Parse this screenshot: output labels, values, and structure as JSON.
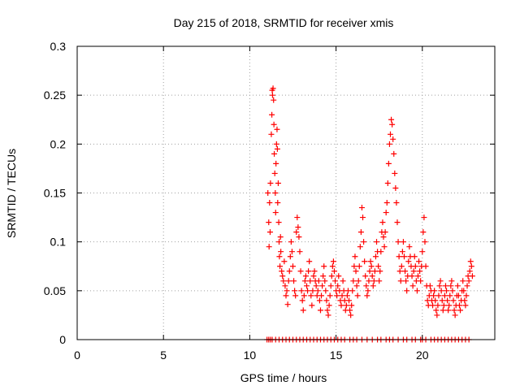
{
  "chart_data": {
    "type": "scatter",
    "title": "Day 215 of 2018, SRMTID for receiver xmis",
    "xlabel": "GPS time / hours",
    "ylabel": "SRMTID / TECUs",
    "xlim": [
      0,
      24.2
    ],
    "ylim": [
      0,
      0.3
    ],
    "xticks": [
      0,
      5,
      10,
      15,
      20
    ],
    "xtick_labels": [
      "0",
      "5",
      "10",
      "15",
      "20"
    ],
    "yticks": [
      0,
      0.05,
      0.1,
      0.15,
      0.2,
      0.25,
      0.3
    ],
    "ytick_labels": [
      "0",
      "0.05",
      "0.1",
      "0.15",
      "0.2",
      "0.25",
      "0.3"
    ],
    "grid": true,
    "legend": "none",
    "marker": "+",
    "series": [
      {
        "name": "SRMTID",
        "color": "#ff0000",
        "points": [
          [
            11.0,
            0.0
          ],
          [
            11.1,
            0.0
          ],
          [
            11.2,
            0.0
          ],
          [
            11.3,
            0.0
          ],
          [
            11.5,
            0.0
          ],
          [
            11.7,
            0.0
          ],
          [
            11.9,
            0.0
          ],
          [
            12.1,
            0.0
          ],
          [
            12.3,
            0.0
          ],
          [
            12.5,
            0.0
          ],
          [
            12.7,
            0.0
          ],
          [
            12.9,
            0.0
          ],
          [
            13.1,
            0.0
          ],
          [
            13.3,
            0.0
          ],
          [
            13.5,
            0.0
          ],
          [
            13.7,
            0.0
          ],
          [
            13.9,
            0.0
          ],
          [
            14.1,
            0.0
          ],
          [
            14.3,
            0.0
          ],
          [
            14.5,
            0.0
          ],
          [
            14.7,
            0.0
          ],
          [
            14.9,
            0.0
          ],
          [
            15.1,
            0.0
          ],
          [
            15.3,
            0.0
          ],
          [
            15.5,
            0.0
          ],
          [
            15.8,
            0.0
          ],
          [
            16.0,
            0.0
          ],
          [
            16.2,
            0.0
          ],
          [
            16.5,
            0.0
          ],
          [
            16.8,
            0.0
          ],
          [
            17.1,
            0.0
          ],
          [
            17.4,
            0.0
          ],
          [
            17.6,
            0.0
          ],
          [
            17.9,
            0.0
          ],
          [
            18.1,
            0.0
          ],
          [
            18.3,
            0.0
          ],
          [
            18.6,
            0.0
          ],
          [
            18.9,
            0.0
          ],
          [
            19.1,
            0.0
          ],
          [
            19.4,
            0.0
          ],
          [
            19.6,
            0.0
          ],
          [
            19.9,
            0.0
          ],
          [
            20.0,
            0.0
          ],
          [
            20.2,
            0.0
          ],
          [
            20.5,
            0.0
          ],
          [
            20.7,
            0.0
          ],
          [
            20.9,
            0.0
          ],
          [
            21.1,
            0.0
          ],
          [
            21.3,
            0.0
          ],
          [
            21.5,
            0.0
          ],
          [
            21.7,
            0.0
          ],
          [
            21.9,
            0.0
          ],
          [
            22.1,
            0.0
          ],
          [
            22.3,
            0.0
          ],
          [
            22.5,
            0.0
          ],
          [
            22.7,
            0.0
          ],
          [
            11.05,
            0.15
          ],
          [
            11.1,
            0.12
          ],
          [
            11.12,
            0.095
          ],
          [
            11.15,
            0.14
          ],
          [
            11.18,
            0.11
          ],
          [
            11.2,
            0.16
          ],
          [
            11.25,
            0.21
          ],
          [
            11.28,
            0.23
          ],
          [
            11.3,
            0.255
          ],
          [
            11.32,
            0.25
          ],
          [
            11.35,
            0.257
          ],
          [
            11.38,
            0.245
          ],
          [
            11.4,
            0.22
          ],
          [
            11.42,
            0.19
          ],
          [
            11.45,
            0.17
          ],
          [
            11.48,
            0.15
          ],
          [
            11.5,
            0.13
          ],
          [
            11.52,
            0.18
          ],
          [
            11.55,
            0.2
          ],
          [
            11.58,
            0.215
          ],
          [
            11.6,
            0.195
          ],
          [
            11.62,
            0.14
          ],
          [
            11.65,
            0.16
          ],
          [
            11.68,
            0.12
          ],
          [
            11.7,
            0.1
          ],
          [
            11.72,
            0.085
          ],
          [
            11.75,
            0.075
          ],
          [
            11.78,
            0.105
          ],
          [
            11.8,
            0.09
          ],
          [
            11.85,
            0.07
          ],
          [
            11.9,
            0.065
          ],
          [
            11.95,
            0.06
          ],
          [
            12.0,
            0.08
          ],
          [
            12.05,
            0.055
          ],
          [
            12.1,
            0.045
          ],
          [
            12.15,
            0.05
          ],
          [
            12.2,
            0.036
          ],
          [
            12.25,
            0.06
          ],
          [
            12.3,
            0.07
          ],
          [
            12.35,
            0.085
          ],
          [
            12.4,
            0.1
          ],
          [
            12.45,
            0.09
          ],
          [
            12.5,
            0.075
          ],
          [
            12.55,
            0.06
          ],
          [
            12.6,
            0.05
          ],
          [
            12.65,
            0.045
          ],
          [
            12.7,
            0.11
          ],
          [
            12.75,
            0.125
          ],
          [
            12.8,
            0.115
          ],
          [
            12.85,
            0.105
          ],
          [
            12.9,
            0.09
          ],
          [
            12.95,
            0.07
          ],
          [
            13.0,
            0.05
          ],
          [
            13.05,
            0.04
          ],
          [
            13.1,
            0.03
          ],
          [
            13.15,
            0.045
          ],
          [
            13.2,
            0.06
          ],
          [
            13.25,
            0.065
          ],
          [
            13.3,
            0.055
          ],
          [
            13.35,
            0.05
          ],
          [
            13.4,
            0.07
          ],
          [
            13.45,
            0.08
          ],
          [
            13.5,
            0.06
          ],
          [
            13.55,
            0.045
          ],
          [
            13.6,
            0.035
          ],
          [
            13.65,
            0.05
          ],
          [
            13.7,
            0.065
          ],
          [
            13.75,
            0.07
          ],
          [
            13.8,
            0.06
          ],
          [
            13.85,
            0.055
          ],
          [
            13.9,
            0.045
          ],
          [
            13.95,
            0.05
          ],
          [
            14.0,
            0.06
          ],
          [
            14.05,
            0.04
          ],
          [
            14.1,
            0.03
          ],
          [
            14.15,
            0.045
          ],
          [
            14.2,
            0.055
          ],
          [
            14.25,
            0.065
          ],
          [
            14.3,
            0.075
          ],
          [
            14.35,
            0.06
          ],
          [
            14.4,
            0.05
          ],
          [
            14.45,
            0.04
          ],
          [
            14.5,
            0.03
          ],
          [
            14.55,
            0.025
          ],
          [
            14.6,
            0.035
          ],
          [
            14.65,
            0.045
          ],
          [
            14.7,
            0.055
          ],
          [
            14.75,
            0.065
          ],
          [
            14.8,
            0.075
          ],
          [
            14.85,
            0.08
          ],
          [
            14.9,
            0.07
          ],
          [
            14.95,
            0.06
          ],
          [
            15.0,
            0.05
          ],
          [
            15.05,
            0.045
          ],
          [
            15.1,
            0.055
          ],
          [
            15.15,
            0.065
          ],
          [
            15.2,
            0.05
          ],
          [
            15.25,
            0.04
          ],
          [
            15.3,
            0.035
          ],
          [
            15.35,
            0.045
          ],
          [
            15.4,
            0.06
          ],
          [
            15.45,
            0.05
          ],
          [
            15.5,
            0.04
          ],
          [
            15.55,
            0.03
          ],
          [
            15.6,
            0.035
          ],
          [
            15.65,
            0.045
          ],
          [
            15.7,
            0.05
          ],
          [
            15.75,
            0.04
          ],
          [
            15.8,
            0.03
          ],
          [
            15.85,
            0.025
          ],
          [
            15.9,
            0.035
          ],
          [
            15.95,
            0.05
          ],
          [
            16.0,
            0.06
          ],
          [
            16.05,
            0.075
          ],
          [
            16.1,
            0.085
          ],
          [
            16.15,
            0.07
          ],
          [
            16.2,
            0.055
          ],
          [
            16.25,
            0.045
          ],
          [
            16.3,
            0.06
          ],
          [
            16.35,
            0.075
          ],
          [
            16.4,
            0.095
          ],
          [
            16.45,
            0.11
          ],
          [
            16.5,
            0.135
          ],
          [
            16.55,
            0.125
          ],
          [
            16.6,
            0.1
          ],
          [
            16.65,
            0.08
          ],
          [
            16.7,
            0.065
          ],
          [
            16.75,
            0.055
          ],
          [
            16.8,
            0.045
          ],
          [
            16.85,
            0.05
          ],
          [
            16.9,
            0.06
          ],
          [
            16.95,
            0.07
          ],
          [
            17.0,
            0.08
          ],
          [
            17.05,
            0.075
          ],
          [
            17.1,
            0.065
          ],
          [
            17.15,
            0.055
          ],
          [
            17.2,
            0.06
          ],
          [
            17.25,
            0.07
          ],
          [
            17.3,
            0.085
          ],
          [
            17.35,
            0.1
          ],
          [
            17.4,
            0.09
          ],
          [
            17.45,
            0.075
          ],
          [
            17.5,
            0.06
          ],
          [
            17.55,
            0.07
          ],
          [
            17.6,
            0.09
          ],
          [
            17.65,
            0.11
          ],
          [
            17.7,
            0.12
          ],
          [
            17.75,
            0.105
          ],
          [
            17.8,
            0.095
          ],
          [
            17.85,
            0.11
          ],
          [
            17.9,
            0.13
          ],
          [
            17.95,
            0.14
          ],
          [
            18.0,
            0.16
          ],
          [
            18.05,
            0.18
          ],
          [
            18.1,
            0.2
          ],
          [
            18.15,
            0.21
          ],
          [
            18.2,
            0.225
          ],
          [
            18.25,
            0.22
          ],
          [
            18.3,
            0.205
          ],
          [
            18.35,
            0.19
          ],
          [
            18.4,
            0.17
          ],
          [
            18.45,
            0.155
          ],
          [
            18.5,
            0.14
          ],
          [
            18.55,
            0.12
          ],
          [
            18.6,
            0.1
          ],
          [
            18.65,
            0.085
          ],
          [
            18.7,
            0.07
          ],
          [
            18.75,
            0.06
          ],
          [
            18.8,
            0.075
          ],
          [
            18.85,
            0.09
          ],
          [
            18.9,
            0.1
          ],
          [
            18.95,
            0.085
          ],
          [
            19.0,
            0.07
          ],
          [
            19.05,
            0.06
          ],
          [
            19.1,
            0.05
          ],
          [
            19.15,
            0.065
          ],
          [
            19.2,
            0.08
          ],
          [
            19.25,
            0.095
          ],
          [
            19.3,
            0.085
          ],
          [
            19.35,
            0.075
          ],
          [
            19.4,
            0.065
          ],
          [
            19.45,
            0.055
          ],
          [
            19.5,
            0.07
          ],
          [
            19.55,
            0.085
          ],
          [
            19.6,
            0.075
          ],
          [
            19.65,
            0.06
          ],
          [
            19.7,
            0.05
          ],
          [
            19.75,
            0.065
          ],
          [
            19.8,
            0.08
          ],
          [
            19.85,
            0.07
          ],
          [
            19.9,
            0.06
          ],
          [
            19.95,
            0.075
          ],
          [
            20.0,
            0.09
          ],
          [
            20.05,
            0.11
          ],
          [
            20.1,
            0.125
          ],
          [
            20.15,
            0.1
          ],
          [
            20.2,
            0.075
          ],
          [
            20.25,
            0.055
          ],
          [
            20.3,
            0.04
          ],
          [
            20.35,
            0.035
          ],
          [
            20.4,
            0.045
          ],
          [
            20.45,
            0.055
          ],
          [
            20.5,
            0.05
          ],
          [
            20.55,
            0.04
          ],
          [
            20.6,
            0.035
          ],
          [
            20.65,
            0.045
          ],
          [
            20.7,
            0.05
          ],
          [
            20.75,
            0.04
          ],
          [
            20.8,
            0.03
          ],
          [
            20.85,
            0.025
          ],
          [
            20.9,
            0.035
          ],
          [
            20.95,
            0.045
          ],
          [
            21.0,
            0.055
          ],
          [
            21.05,
            0.06
          ],
          [
            21.1,
            0.05
          ],
          [
            21.15,
            0.04
          ],
          [
            21.2,
            0.03
          ],
          [
            21.25,
            0.035
          ],
          [
            21.3,
            0.045
          ],
          [
            21.35,
            0.055
          ],
          [
            21.4,
            0.05
          ],
          [
            21.45,
            0.04
          ],
          [
            21.5,
            0.03
          ],
          [
            21.55,
            0.035
          ],
          [
            21.6,
            0.045
          ],
          [
            21.65,
            0.055
          ],
          [
            21.7,
            0.06
          ],
          [
            21.75,
            0.05
          ],
          [
            21.8,
            0.04
          ],
          [
            21.85,
            0.03
          ],
          [
            21.9,
            0.025
          ],
          [
            21.95,
            0.035
          ],
          [
            22.0,
            0.045
          ],
          [
            22.05,
            0.055
          ],
          [
            22.1,
            0.045
          ],
          [
            22.15,
            0.035
          ],
          [
            22.2,
            0.03
          ],
          [
            22.25,
            0.04
          ],
          [
            22.3,
            0.05
          ],
          [
            22.35,
            0.06
          ],
          [
            22.4,
            0.05
          ],
          [
            22.45,
            0.04
          ],
          [
            22.5,
            0.035
          ],
          [
            22.55,
            0.045
          ],
          [
            22.6,
            0.055
          ],
          [
            22.65,
            0.065
          ],
          [
            22.7,
            0.06
          ],
          [
            22.75,
            0.07
          ],
          [
            22.8,
            0.08
          ],
          [
            22.85,
            0.075
          ],
          [
            22.9,
            0.065
          ]
        ]
      }
    ]
  }
}
